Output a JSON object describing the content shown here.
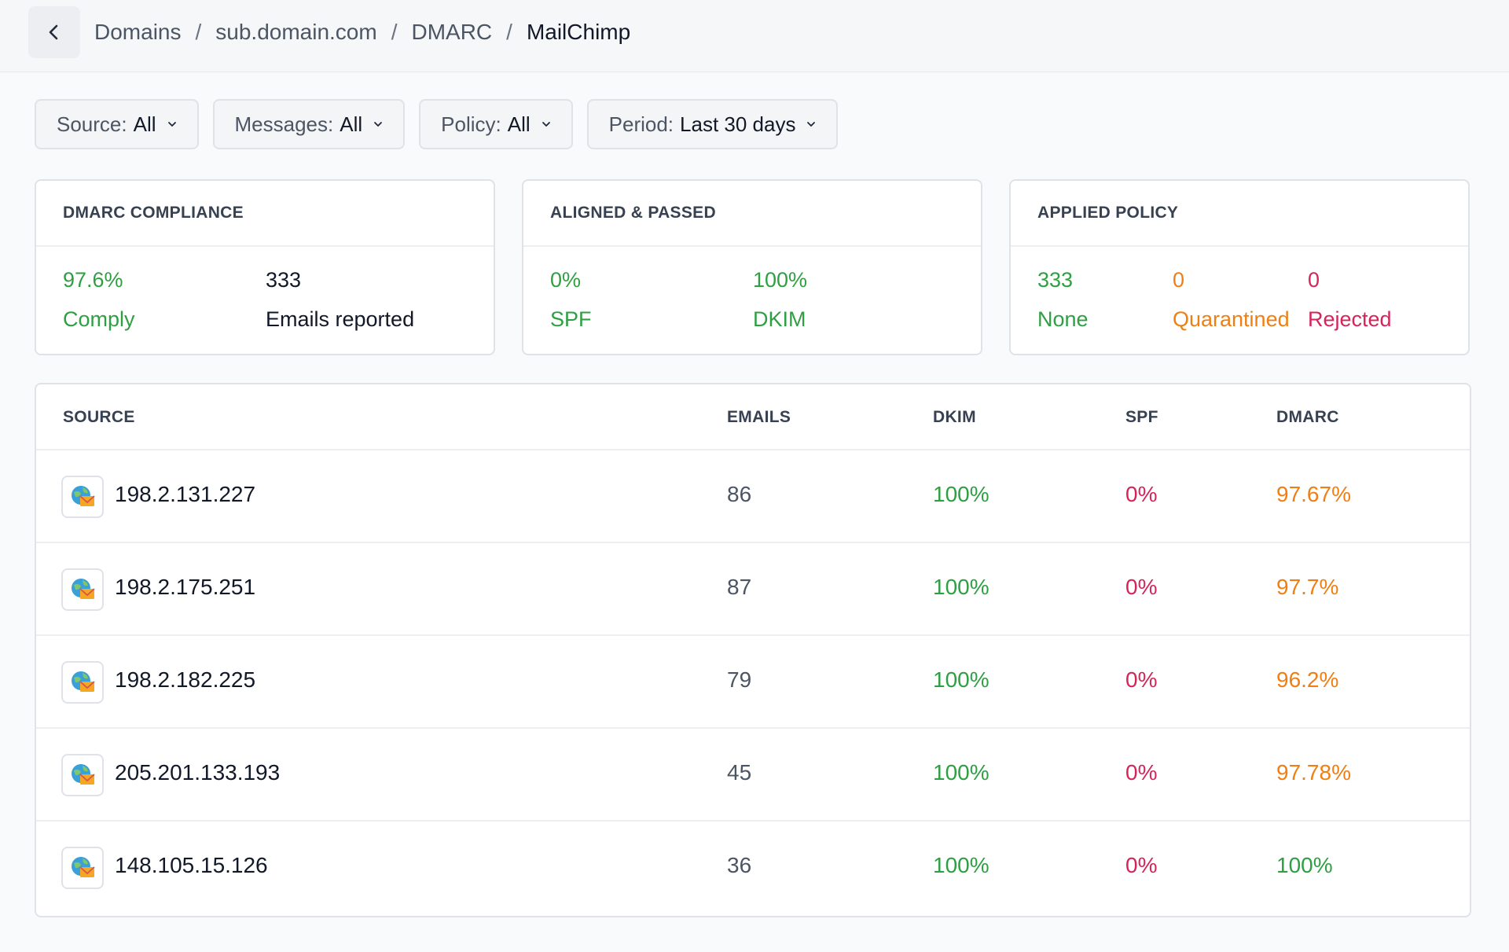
{
  "breadcrumb": [
    "Domains",
    "sub.domain.com",
    "DMARC",
    "MailChimp"
  ],
  "filters": [
    {
      "label": "Source:",
      "value": "All"
    },
    {
      "label": "Messages:",
      "value": "All"
    },
    {
      "label": "Policy:",
      "value": "All"
    },
    {
      "label": "Period:",
      "value": "Last 30 days"
    }
  ],
  "cards": {
    "compliance": {
      "title": "DMARC COMPLIANCE",
      "comply_value": "97.6%",
      "comply_label": "Comply",
      "reported_value": "333",
      "reported_label": "Emails reported"
    },
    "aligned": {
      "title": "ALIGNED & PASSED",
      "spf_value": "0%",
      "spf_label": "SPF",
      "dkim_value": "100%",
      "dkim_label": "DKIM"
    },
    "policy": {
      "title": "APPLIED POLICY",
      "none_value": "333",
      "none_label": "None",
      "quarantined_value": "0",
      "quarantined_label": "Quarantined",
      "rejected_value": "0",
      "rejected_label": "Rejected"
    }
  },
  "table": {
    "headers": {
      "source": "SOURCE",
      "emails": "EMAILS",
      "dkim": "DKIM",
      "spf": "SPF",
      "dmarc": "DMARC"
    },
    "rows": [
      {
        "source": "198.2.131.227",
        "emails": "86",
        "dkim": "100%",
        "spf": "0%",
        "dmarc": "97.67%",
        "dmarc_status": "orange"
      },
      {
        "source": "198.2.175.251",
        "emails": "87",
        "dkim": "100%",
        "spf": "0%",
        "dmarc": "97.7%",
        "dmarc_status": "orange"
      },
      {
        "source": "198.2.182.225",
        "emails": "79",
        "dkim": "100%",
        "spf": "0%",
        "dmarc": "96.2%",
        "dmarc_status": "orange"
      },
      {
        "source": "205.201.133.193",
        "emails": "45",
        "dkim": "100%",
        "spf": "0%",
        "dmarc": "97.78%",
        "dmarc_status": "orange"
      },
      {
        "source": "148.105.15.126",
        "emails": "36",
        "dkim": "100%",
        "spf": "0%",
        "dmarc": "100%",
        "dmarc_status": "green"
      }
    ]
  },
  "colors": {
    "green": "#2ea043",
    "orange": "#f07f13",
    "red": "#d6245a"
  },
  "icons": {
    "back": "chevron-left-icon",
    "filter_chevron": "chevron-down-icon",
    "source": "mail-server-globe-icon"
  }
}
